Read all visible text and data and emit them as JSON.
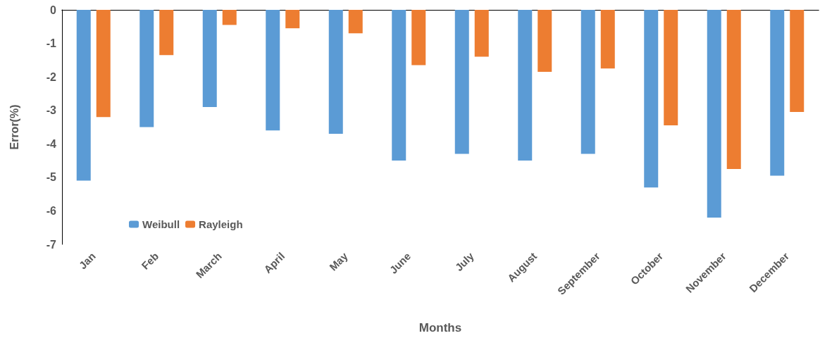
{
  "chart_data": {
    "type": "bar",
    "xlabel": "Months",
    "ylabel": "Error(%)",
    "categories": [
      "Jan",
      "Feb",
      "March",
      "April",
      "May",
      "June",
      "July",
      "August",
      "September",
      "October",
      "November",
      "December"
    ],
    "series": [
      {
        "name": "Weibull",
        "color": "#5b9bd5",
        "values": [
          -5.1,
          -3.5,
          -2.9,
          -3.6,
          -3.7,
          -4.5,
          -4.3,
          -4.5,
          -4.3,
          -5.3,
          -6.2,
          -4.95
        ]
      },
      {
        "name": "Rayleigh",
        "color": "#ed7d31",
        "values": [
          -3.2,
          -1.35,
          -0.45,
          -0.55,
          -0.7,
          -1.65,
          -1.4,
          -1.85,
          -1.75,
          -3.45,
          -4.75,
          -3.05
        ]
      }
    ],
    "ylim": [
      -7,
      0
    ],
    "yticks": [
      -7,
      -6,
      -5,
      -4,
      -3,
      -2,
      -1,
      0
    ],
    "grid": false,
    "legend": "bottom left"
  }
}
